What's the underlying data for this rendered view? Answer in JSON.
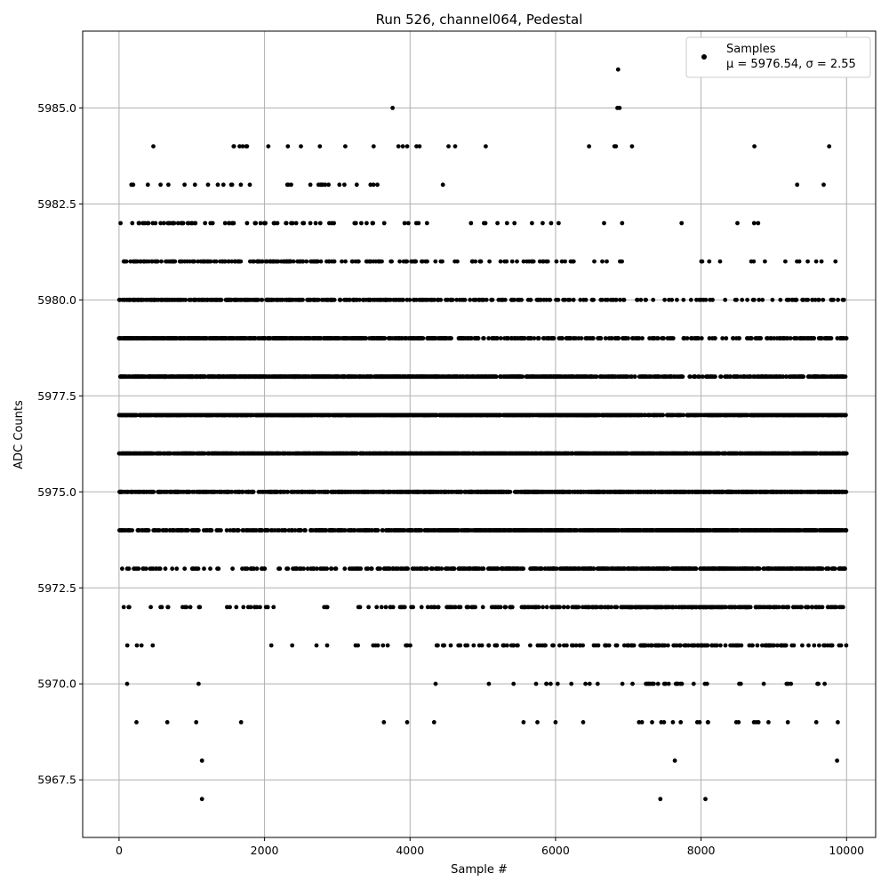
{
  "chart_data": {
    "type": "scatter",
    "title": "Run 526, channel064, Pedestal",
    "xlabel": "Sample #",
    "ylabel": "ADC Counts",
    "xlim": [
      -500,
      10400
    ],
    "ylim": [
      5966.0,
      5987.0
    ],
    "xticks": [
      0,
      2000,
      4000,
      6000,
      8000,
      10000
    ],
    "yticks": [
      5967.5,
      5970.0,
      5972.5,
      5975.0,
      5977.5,
      5980.0,
      5982.5,
      5985.0
    ],
    "xtick_labels": [
      "0",
      "2000",
      "4000",
      "6000",
      "8000",
      "10000"
    ],
    "ytick_labels": [
      "5967.5",
      "5970.0",
      "5972.5",
      "5975.0",
      "5977.5",
      "5980.0",
      "5982.5",
      "5985.0"
    ],
    "grid": true,
    "legend_position": "top-right",
    "series": [
      {
        "name": "Samples",
        "legend_stats": "μ = 5976.54, σ = 2.55",
        "color": "#000000",
        "marker": "circle",
        "n_samples": 10000,
        "mean": 5976.54,
        "std": 2.55,
        "outliers": [
          {
            "x": 6860,
            "y": 5986
          },
          {
            "x": 3760,
            "y": 5985
          },
          {
            "x": 6850,
            "y": 5985
          },
          {
            "x": 6880,
            "y": 5985
          },
          {
            "x": 1580,
            "y": 5984
          },
          {
            "x": 1700,
            "y": 5984
          },
          {
            "x": 1760,
            "y": 5984
          },
          {
            "x": 2320,
            "y": 5984
          },
          {
            "x": 2760,
            "y": 5984
          },
          {
            "x": 3110,
            "y": 5984
          },
          {
            "x": 3840,
            "y": 5984
          },
          {
            "x": 3900,
            "y": 5984
          },
          {
            "x": 3960,
            "y": 5984
          },
          {
            "x": 4130,
            "y": 5984
          },
          {
            "x": 4620,
            "y": 5984
          },
          {
            "x": 5040,
            "y": 5984
          },
          {
            "x": 6460,
            "y": 5984
          },
          {
            "x": 6810,
            "y": 5984
          },
          {
            "x": 6830,
            "y": 5984
          },
          {
            "x": 7050,
            "y": 5984
          },
          {
            "x": 1060,
            "y": 5969
          },
          {
            "x": 3640,
            "y": 5969
          },
          {
            "x": 4330,
            "y": 5969
          },
          {
            "x": 5560,
            "y": 5969
          },
          {
            "x": 6000,
            "y": 5969
          },
          {
            "x": 6380,
            "y": 5969
          },
          {
            "x": 7490,
            "y": 5969
          },
          {
            "x": 7720,
            "y": 5969
          },
          {
            "x": 7980,
            "y": 5969
          },
          {
            "x": 9880,
            "y": 5969
          },
          {
            "x": 1140,
            "y": 5968
          },
          {
            "x": 7640,
            "y": 5968
          },
          {
            "x": 9870,
            "y": 5968
          },
          {
            "x": 1140,
            "y": 5967
          },
          {
            "x": 7440,
            "y": 5967
          },
          {
            "x": 8060,
            "y": 5967
          }
        ]
      }
    ]
  }
}
